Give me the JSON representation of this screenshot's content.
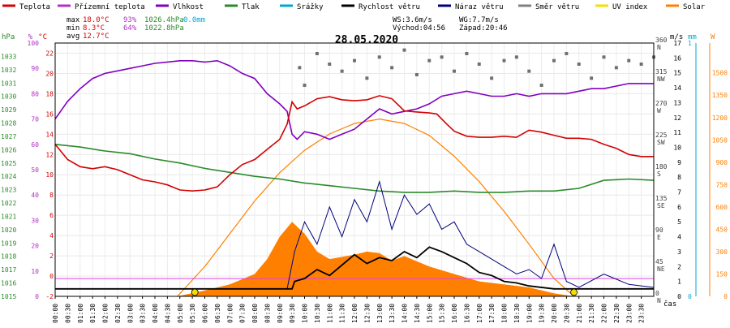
{
  "legend": [
    {
      "label": "Teplota",
      "color": "#d40000"
    },
    {
      "label": "Přízemní teplota",
      "color": "#b030c8"
    },
    {
      "label": "Vlhkost",
      "color": "#8000c0"
    },
    {
      "label": "Tlak",
      "color": "#2a8a2a"
    },
    {
      "label": "Srážky",
      "color": "#00a8d0"
    },
    {
      "label": "Rychlost větru",
      "color": "#000000"
    },
    {
      "label": "Náraz větru",
      "color": "#00007c"
    },
    {
      "label": "Směr větru",
      "color": "#808080"
    },
    {
      "label": "UV index",
      "color": "#f0e000"
    },
    {
      "label": "Solar",
      "color": "#ff8000"
    }
  ],
  "stats": {
    "max": {
      "label": "max",
      "temp": "18.0°C",
      "hum": "93%",
      "press": "1026.4hPa",
      "rain": "0.0mm"
    },
    "min": {
      "label": "min",
      "temp": "8.3°C",
      "hum": "64%",
      "press": "1022.8hPa"
    },
    "avg": {
      "label": "avg",
      "temp": "12.7°C"
    },
    "wind": {
      "ws": "WS:3.6m/s",
      "wg": "WG:7.7m/s",
      "sunrise": "Východ:04:56",
      "sunset": "Západ:20:46"
    }
  },
  "chart_data": {
    "type": "line",
    "title": "28.05.2020",
    "xlabel": "čas",
    "x_range": [
      0,
      24
    ],
    "x_ticks": [
      "00:00",
      "00:30",
      "01:00",
      "01:30",
      "02:00",
      "02:30",
      "03:00",
      "03:30",
      "04:00",
      "04:30",
      "05:00",
      "05:30",
      "06:00",
      "06:30",
      "07:00",
      "07:30",
      "08:00",
      "08:30",
      "09:00",
      "09:30",
      "10:00",
      "10:30",
      "11:00",
      "11:30",
      "12:00",
      "12:30",
      "13:00",
      "13:30",
      "14:00",
      "14:30",
      "15:00",
      "15:30",
      "16:00",
      "16:30",
      "17:00",
      "17:30",
      "18:00",
      "18:30",
      "19:00",
      "19:30",
      "20:00",
      "20:30",
      "21:00",
      "21:30",
      "22:00",
      "22:30",
      "23:00",
      "23:30"
    ],
    "axes": {
      "pressure": {
        "label": "hPa",
        "range": [
          1015,
          1034
        ],
        "ticks": [
          1015,
          1016,
          1017,
          1018,
          1019,
          1020,
          1021,
          1022,
          1023,
          1024,
          1025,
          1026,
          1027,
          1028,
          1029,
          1030,
          1031,
          1032,
          1033
        ],
        "color": "#2a8a2a"
      },
      "humidity": {
        "label": "%",
        "range": [
          0,
          100
        ],
        "ticks": [
          0,
          10,
          20,
          30,
          40,
          50,
          60,
          70,
          80,
          90,
          100
        ],
        "color": "#b030c8"
      },
      "temperature": {
        "label": "°C",
        "range": [
          -2,
          23
        ],
        "ticks": [
          -2,
          0,
          2,
          4,
          6,
          8,
          10,
          12,
          14,
          16,
          18,
          20,
          22
        ],
        "color": "#d40000"
      },
      "direction": {
        "range": [
          0,
          360
        ],
        "ticks": [
          {
            "v": 0,
            "l": "N"
          },
          {
            "v": 45,
            "l": "NE"
          },
          {
            "v": 90,
            "l": "E"
          },
          {
            "v": 135,
            "l": "SE"
          },
          {
            "v": 180,
            "l": "S"
          },
          {
            "v": 225,
            "l": "SW"
          },
          {
            "v": 270,
            "l": "W"
          },
          {
            "v": 315,
            "l": "NW"
          },
          {
            "v": 360,
            "l": "N"
          }
        ],
        "color": "#404040"
      },
      "wind": {
        "label": "m/s",
        "range": [
          0,
          17
        ],
        "ticks": [
          0,
          1,
          2,
          3,
          4,
          5,
          6,
          7,
          8,
          9,
          10,
          11,
          12,
          13,
          14,
          15,
          16,
          17
        ],
        "color": "#000000"
      },
      "rain": {
        "label": "mm",
        "range": [
          0,
          1
        ],
        "ticks": [
          0,
          1
        ],
        "color": "#00a8d0"
      },
      "solar": {
        "label": "W",
        "range": [
          0,
          1700
        ],
        "ticks": [
          0,
          150,
          300,
          450,
          600,
          750,
          900,
          1050,
          1200,
          1350,
          1500
        ],
        "color": "#ff8000"
      }
    },
    "series": [
      {
        "name": "Teplota",
        "axis": "temperature",
        "color": "#d40000",
        "points": [
          [
            0,
            13.0
          ],
          [
            0.5,
            11.5
          ],
          [
            1,
            10.8
          ],
          [
            1.5,
            10.6
          ],
          [
            2,
            10.8
          ],
          [
            2.5,
            10.5
          ],
          [
            3,
            10.0
          ],
          [
            3.5,
            9.5
          ],
          [
            4,
            9.3
          ],
          [
            4.5,
            9.0
          ],
          [
            5,
            8.5
          ],
          [
            5.5,
            8.4
          ],
          [
            6,
            8.5
          ],
          [
            6.5,
            8.8
          ],
          [
            7,
            10.0
          ],
          [
            7.5,
            11.0
          ],
          [
            8,
            11.5
          ],
          [
            8.5,
            12.5
          ],
          [
            9,
            13.5
          ],
          [
            9.3,
            15
          ],
          [
            9.5,
            17.2
          ],
          [
            9.7,
            16.5
          ],
          [
            10,
            16.8
          ],
          [
            10.5,
            17.5
          ],
          [
            11,
            17.7
          ],
          [
            11.5,
            17.4
          ],
          [
            12,
            17.3
          ],
          [
            12.5,
            17.4
          ],
          [
            13,
            17.8
          ],
          [
            13.5,
            17.5
          ],
          [
            14,
            16.3
          ],
          [
            14.5,
            16.2
          ],
          [
            15,
            16.1
          ],
          [
            15.3,
            16.0
          ],
          [
            15.7,
            15.0
          ],
          [
            16,
            14.3
          ],
          [
            16.5,
            13.8
          ],
          [
            17,
            13.7
          ],
          [
            17.5,
            13.7
          ],
          [
            18,
            13.8
          ],
          [
            18.5,
            13.7
          ],
          [
            19,
            14.4
          ],
          [
            19.5,
            14.2
          ],
          [
            20,
            13.9
          ],
          [
            20.5,
            13.6
          ],
          [
            21,
            13.6
          ],
          [
            21.5,
            13.5
          ],
          [
            22,
            13.0
          ],
          [
            22.5,
            12.6
          ],
          [
            23,
            12.0
          ],
          [
            23.5,
            11.8
          ],
          [
            24,
            11.8
          ]
        ]
      },
      {
        "name": "Vlhkost",
        "axis": "humidity",
        "color": "#8000c0",
        "points": [
          [
            0,
            70
          ],
          [
            0.5,
            77
          ],
          [
            1,
            82
          ],
          [
            1.5,
            86
          ],
          [
            2,
            88
          ],
          [
            2.5,
            89
          ],
          [
            3,
            90
          ],
          [
            3.5,
            91
          ],
          [
            4,
            92
          ],
          [
            4.5,
            92.5
          ],
          [
            5,
            93
          ],
          [
            5.5,
            93
          ],
          [
            6,
            92.5
          ],
          [
            6.5,
            93
          ],
          [
            7,
            91
          ],
          [
            7.5,
            88
          ],
          [
            8,
            86
          ],
          [
            8.5,
            80
          ],
          [
            9,
            76
          ],
          [
            9.3,
            73
          ],
          [
            9.5,
            64
          ],
          [
            9.7,
            62
          ],
          [
            10,
            65
          ],
          [
            10.5,
            64
          ],
          [
            11,
            62
          ],
          [
            11.5,
            64
          ],
          [
            12,
            66
          ],
          [
            12.5,
            70
          ],
          [
            13,
            74
          ],
          [
            13.5,
            72
          ],
          [
            14,
            73
          ],
          [
            14.5,
            74
          ],
          [
            15,
            76
          ],
          [
            15.5,
            79
          ],
          [
            16,
            80
          ],
          [
            16.5,
            81
          ],
          [
            17,
            80
          ],
          [
            17.5,
            79
          ],
          [
            18,
            79
          ],
          [
            18.5,
            80
          ],
          [
            19,
            79
          ],
          [
            19.5,
            80
          ],
          [
            20,
            80
          ],
          [
            20.5,
            80
          ],
          [
            21,
            81
          ],
          [
            21.5,
            82
          ],
          [
            22,
            82
          ],
          [
            22.5,
            83
          ],
          [
            23,
            84
          ],
          [
            23.5,
            84
          ],
          [
            24,
            84
          ]
        ]
      },
      {
        "name": "Tlak",
        "axis": "pressure",
        "color": "#2a8a2a",
        "points": [
          [
            0,
            1026.4
          ],
          [
            1,
            1026.2
          ],
          [
            2,
            1025.9
          ],
          [
            3,
            1025.7
          ],
          [
            4,
            1025.3
          ],
          [
            5,
            1025.0
          ],
          [
            6,
            1024.6
          ],
          [
            7,
            1024.3
          ],
          [
            8,
            1024.0
          ],
          [
            9,
            1023.8
          ],
          [
            10,
            1023.5
          ],
          [
            11,
            1023.3
          ],
          [
            12,
            1023.1
          ],
          [
            13,
            1022.9
          ],
          [
            14,
            1022.8
          ],
          [
            15,
            1022.8
          ],
          [
            16,
            1022.9
          ],
          [
            17,
            1022.8
          ],
          [
            18,
            1022.8
          ],
          [
            19,
            1022.9
          ],
          [
            20,
            1022.9
          ],
          [
            21,
            1023.1
          ],
          [
            22,
            1023.7
          ],
          [
            23,
            1023.8
          ],
          [
            24,
            1023.7
          ]
        ]
      },
      {
        "name": "Rychlost větru",
        "axis": "wind",
        "color": "#000000",
        "points": [
          [
            0,
            0.5
          ],
          [
            9.5,
            0.5
          ],
          [
            9.6,
            1.0
          ],
          [
            10,
            1.2
          ],
          [
            10.5,
            1.8
          ],
          [
            11,
            1.4
          ],
          [
            11.5,
            2.1
          ],
          [
            12,
            2.8
          ],
          [
            12.5,
            2.2
          ],
          [
            13,
            2.6
          ],
          [
            13.5,
            2.4
          ],
          [
            14,
            3.0
          ],
          [
            14.5,
            2.6
          ],
          [
            15,
            3.3
          ],
          [
            15.5,
            3.0
          ],
          [
            16,
            2.6
          ],
          [
            16.5,
            2.2
          ],
          [
            17,
            1.6
          ],
          [
            17.5,
            1.4
          ],
          [
            18,
            1.0
          ],
          [
            18.5,
            0.9
          ],
          [
            19,
            0.7
          ],
          [
            20,
            0.5
          ],
          [
            24,
            0.5
          ]
        ]
      },
      {
        "name": "Náraz větru",
        "axis": "wind",
        "color": "#00007c",
        "points": [
          [
            0,
            0.5
          ],
          [
            9.3,
            0.5
          ],
          [
            9.6,
            3
          ],
          [
            10,
            5
          ],
          [
            10.5,
            3.5
          ],
          [
            11,
            6
          ],
          [
            11.5,
            4
          ],
          [
            12,
            6.5
          ],
          [
            12.5,
            5
          ],
          [
            13,
            7.7
          ],
          [
            13.5,
            4.5
          ],
          [
            14,
            6.8
          ],
          [
            14.5,
            5.5
          ],
          [
            15,
            6.2
          ],
          [
            15.5,
            4.5
          ],
          [
            16,
            5
          ],
          [
            16.5,
            3.5
          ],
          [
            17,
            3
          ],
          [
            17.5,
            2.5
          ],
          [
            18,
            2
          ],
          [
            18.5,
            1.5
          ],
          [
            19,
            1.8
          ],
          [
            19.5,
            1.2
          ],
          [
            20,
            3.5
          ],
          [
            20.5,
            1
          ],
          [
            21,
            0.6
          ],
          [
            22,
            1.5
          ],
          [
            23,
            0.8
          ],
          [
            24,
            0.6
          ]
        ]
      },
      {
        "name": "Solar",
        "axis": "solar",
        "color": "#ff8000",
        "points": [
          [
            4.9,
            0
          ],
          [
            6,
            200
          ],
          [
            7,
            420
          ],
          [
            8,
            640
          ],
          [
            9,
            830
          ],
          [
            10,
            980
          ],
          [
            11,
            1090
          ],
          [
            12,
            1160
          ],
          [
            13,
            1190
          ],
          [
            14,
            1160
          ],
          [
            15,
            1080
          ],
          [
            16,
            940
          ],
          [
            17,
            770
          ],
          [
            18,
            570
          ],
          [
            19,
            350
          ],
          [
            20,
            120
          ],
          [
            20.8,
            0
          ]
        ]
      },
      {
        "name": "Solar_fill",
        "axis": "solar",
        "color": "#ff8000",
        "points": [
          [
            4.9,
            0
          ],
          [
            6,
            40
          ],
          [
            7,
            80
          ],
          [
            8,
            150
          ],
          [
            8.5,
            250
          ],
          [
            9,
            400
          ],
          [
            9.5,
            500
          ],
          [
            10,
            420
          ],
          [
            10.5,
            300
          ],
          [
            11,
            250
          ],
          [
            12,
            280
          ],
          [
            12.5,
            300
          ],
          [
            13,
            290
          ],
          [
            13.5,
            240
          ],
          [
            14,
            270
          ],
          [
            15,
            200
          ],
          [
            16,
            150
          ],
          [
            17,
            100
          ],
          [
            18,
            80
          ],
          [
            19,
            60
          ],
          [
            20,
            20
          ],
          [
            20.8,
            0
          ]
        ]
      }
    ],
    "direction_points": [
      [
        9.8,
        325
      ],
      [
        10,
        300
      ],
      [
        10.5,
        345
      ],
      [
        11,
        330
      ],
      [
        11.5,
        320
      ],
      [
        12,
        335
      ],
      [
        12.5,
        310
      ],
      [
        13,
        340
      ],
      [
        13.5,
        325
      ],
      [
        14,
        350
      ],
      [
        14.5,
        315
      ],
      [
        15,
        335
      ],
      [
        15.5,
        340
      ],
      [
        16,
        320
      ],
      [
        16.5,
        345
      ],
      [
        17,
        330
      ],
      [
        17.5,
        310
      ],
      [
        18,
        335
      ],
      [
        18.5,
        340
      ],
      [
        19,
        320
      ],
      [
        19.5,
        300
      ],
      [
        20,
        335
      ],
      [
        20.5,
        345
      ],
      [
        21,
        330
      ],
      [
        21.5,
        310
      ],
      [
        22,
        340
      ],
      [
        22.5,
        325
      ],
      [
        23,
        335
      ],
      [
        23.5,
        330
      ],
      [
        24,
        340
      ]
    ],
    "uv_points": [
      [
        5.6,
        0.1
      ],
      [
        20.8,
        0.1
      ]
    ],
    "marker_line": {
      "axis": "humidity",
      "value": 7
    }
  }
}
